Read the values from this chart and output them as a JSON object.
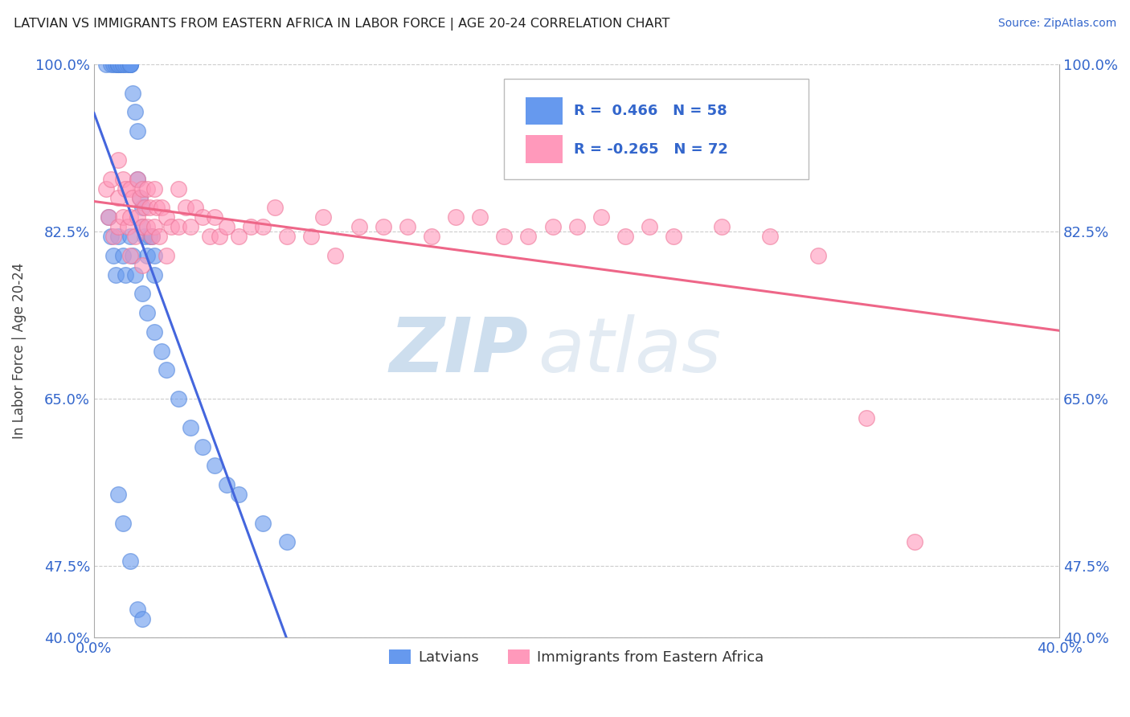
{
  "title": "LATVIAN VS IMMIGRANTS FROM EASTERN AFRICA IN LABOR FORCE | AGE 20-24 CORRELATION CHART",
  "source": "Source: ZipAtlas.com",
  "ylabel": "In Labor Force | Age 20-24",
  "xmin": 0.0,
  "xmax": 0.4,
  "ymin": 0.4,
  "ymax": 1.0,
  "x_ticks": [
    0.0,
    0.4
  ],
  "x_tick_labels": [
    "0.0%",
    "40.0%"
  ],
  "y_ticks": [
    0.4,
    0.475,
    0.65,
    0.825,
    1.0
  ],
  "y_tick_labels": [
    "40.0%",
    "47.5%",
    "65.0%",
    "82.5%",
    "100.0%"
  ],
  "latvian_color": "#6699EE",
  "latvian_edge": "#5588DD",
  "immigrant_color": "#FF99BB",
  "immigrant_edge": "#EE7799",
  "latvian_R": 0.466,
  "latvian_N": 58,
  "immigrant_R": -0.265,
  "immigrant_N": 72,
  "legend_labels": [
    "Latvians",
    "Immigrants from Eastern Africa"
  ],
  "watermark_zip": "ZIP",
  "watermark_atlas": "atlas",
  "watermark_color_zip": "#B8D0E8",
  "watermark_color_atlas": "#C8D8E8",
  "trend_latvian_color": "#4466DD",
  "trend_immigrant_color": "#EE6688",
  "latvian_x": [
    0.005,
    0.007,
    0.008,
    0.009,
    0.01,
    0.01,
    0.01,
    0.01,
    0.011,
    0.012,
    0.012,
    0.013,
    0.014,
    0.015,
    0.015,
    0.015,
    0.015,
    0.016,
    0.017,
    0.018,
    0.018,
    0.019,
    0.02,
    0.02,
    0.021,
    0.022,
    0.023,
    0.024,
    0.025,
    0.025,
    0.006,
    0.007,
    0.008,
    0.009,
    0.01,
    0.012,
    0.013,
    0.015,
    0.016,
    0.017,
    0.02,
    0.022,
    0.025,
    0.028,
    0.03,
    0.035,
    0.04,
    0.045,
    0.05,
    0.055,
    0.06,
    0.07,
    0.08,
    0.01,
    0.012,
    0.015,
    0.018,
    0.02
  ],
  "latvian_y": [
    1.0,
    1.0,
    1.0,
    1.0,
    1.0,
    1.0,
    1.0,
    1.0,
    1.0,
    1.0,
    1.0,
    1.0,
    1.0,
    1.0,
    1.0,
    1.0,
    1.0,
    0.97,
    0.95,
    0.93,
    0.88,
    0.86,
    0.83,
    0.85,
    0.82,
    0.8,
    0.82,
    0.82,
    0.8,
    0.78,
    0.84,
    0.82,
    0.8,
    0.78,
    0.82,
    0.8,
    0.78,
    0.82,
    0.8,
    0.78,
    0.76,
    0.74,
    0.72,
    0.7,
    0.68,
    0.65,
    0.62,
    0.6,
    0.58,
    0.56,
    0.55,
    0.52,
    0.5,
    0.55,
    0.52,
    0.48,
    0.43,
    0.42
  ],
  "immigrant_x": [
    0.005,
    0.006,
    0.007,
    0.008,
    0.01,
    0.01,
    0.01,
    0.012,
    0.012,
    0.013,
    0.014,
    0.015,
    0.015,
    0.015,
    0.016,
    0.017,
    0.018,
    0.018,
    0.019,
    0.02,
    0.02,
    0.02,
    0.021,
    0.022,
    0.022,
    0.023,
    0.024,
    0.025,
    0.025,
    0.026,
    0.027,
    0.028,
    0.03,
    0.03,
    0.032,
    0.035,
    0.035,
    0.038,
    0.04,
    0.042,
    0.045,
    0.048,
    0.05,
    0.052,
    0.055,
    0.06,
    0.065,
    0.07,
    0.075,
    0.08,
    0.09,
    0.095,
    0.1,
    0.11,
    0.12,
    0.13,
    0.14,
    0.15,
    0.16,
    0.17,
    0.18,
    0.19,
    0.2,
    0.21,
    0.22,
    0.23,
    0.24,
    0.26,
    0.28,
    0.3,
    0.32,
    0.34
  ],
  "immigrant_y": [
    0.87,
    0.84,
    0.88,
    0.82,
    0.86,
    0.83,
    0.9,
    0.88,
    0.84,
    0.87,
    0.83,
    0.87,
    0.84,
    0.8,
    0.86,
    0.82,
    0.88,
    0.84,
    0.86,
    0.87,
    0.83,
    0.79,
    0.85,
    0.87,
    0.83,
    0.85,
    0.82,
    0.87,
    0.83,
    0.85,
    0.82,
    0.85,
    0.84,
    0.8,
    0.83,
    0.87,
    0.83,
    0.85,
    0.83,
    0.85,
    0.84,
    0.82,
    0.84,
    0.82,
    0.83,
    0.82,
    0.83,
    0.83,
    0.85,
    0.82,
    0.82,
    0.84,
    0.8,
    0.83,
    0.83,
    0.83,
    0.82,
    0.84,
    0.84,
    0.82,
    0.82,
    0.83,
    0.83,
    0.84,
    0.82,
    0.83,
    0.82,
    0.83,
    0.82,
    0.8,
    0.63,
    0.5
  ]
}
